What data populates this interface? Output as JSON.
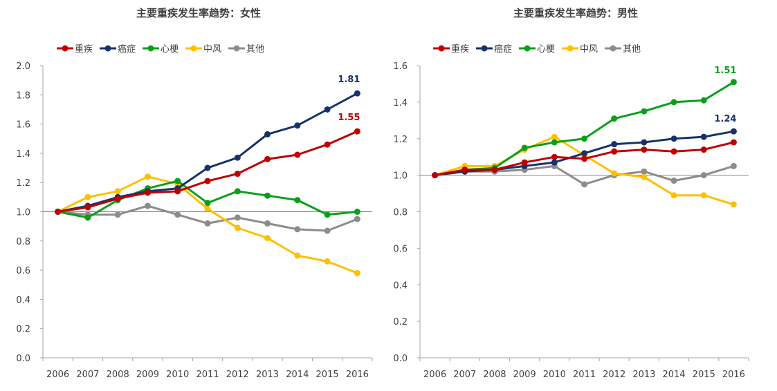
{
  "chart_data": [
    {
      "type": "line",
      "title": "主要重疾发生率趋势：女性",
      "xlabel": "",
      "ylabel": "",
      "categories": [
        "2006",
        "2007",
        "2008",
        "2009",
        "2010",
        "2011",
        "2012",
        "2013",
        "2014",
        "2015",
        "2016"
      ],
      "ylim": [
        0,
        2.0
      ],
      "yticks": [
        "0.0",
        "0.2",
        "0.4",
        "0.6",
        "0.8",
        "1.0",
        "1.2",
        "1.4",
        "1.6",
        "1.8",
        "2.0"
      ],
      "reference_line": 1.0,
      "legend_position": "top-left",
      "series": [
        {
          "name": "重疾",
          "color": "#c00000",
          "values": [
            1.0,
            1.03,
            1.09,
            1.13,
            1.14,
            1.21,
            1.26,
            1.36,
            1.39,
            1.46,
            1.55
          ]
        },
        {
          "name": "癌症",
          "color": "#17326b",
          "values": [
            1.0,
            1.04,
            1.1,
            1.14,
            1.16,
            1.3,
            1.37,
            1.53,
            1.59,
            1.7,
            1.81
          ]
        },
        {
          "name": "心梗",
          "color": "#0a9f1a",
          "values": [
            1.0,
            0.96,
            1.08,
            1.16,
            1.21,
            1.06,
            1.14,
            1.11,
            1.08,
            0.98,
            1.0
          ]
        },
        {
          "name": "中风",
          "color": "#ffc000",
          "values": [
            1.0,
            1.1,
            1.14,
            1.24,
            1.19,
            1.02,
            0.89,
            0.82,
            0.7,
            0.66,
            0.58
          ]
        },
        {
          "name": "其他",
          "color": "#8c8c8c",
          "values": [
            1.0,
            0.98,
            0.98,
            1.04,
            0.98,
            0.92,
            0.96,
            0.92,
            0.88,
            0.87,
            0.95
          ]
        }
      ],
      "annotations": [
        {
          "text": "1.81",
          "series": "癌症"
        },
        {
          "text": "1.55",
          "series": "重疾"
        }
      ]
    },
    {
      "type": "line",
      "title": "主要重疾发生率趋势：男性",
      "xlabel": "",
      "ylabel": "",
      "categories": [
        "2006",
        "2007",
        "2008",
        "2009",
        "2010",
        "2011",
        "2012",
        "2013",
        "2014",
        "2015",
        "2016"
      ],
      "ylim": [
        0,
        1.6
      ],
      "yticks": [
        "0.0",
        "0.2",
        "0.4",
        "0.6",
        "0.8",
        "1.0",
        "1.2",
        "1.4",
        "1.6"
      ],
      "reference_line": 1.0,
      "legend_position": "top-left",
      "series": [
        {
          "name": "重疾",
          "color": "#c00000",
          "values": [
            1.0,
            1.03,
            1.03,
            1.07,
            1.1,
            1.09,
            1.13,
            1.14,
            1.13,
            1.14,
            1.18
          ]
        },
        {
          "name": "癌症",
          "color": "#17326b",
          "values": [
            1.0,
            1.02,
            1.03,
            1.05,
            1.07,
            1.12,
            1.17,
            1.18,
            1.2,
            1.21,
            1.24
          ]
        },
        {
          "name": "心梗",
          "color": "#0a9f1a",
          "values": [
            1.0,
            1.03,
            1.04,
            1.15,
            1.18,
            1.2,
            1.31,
            1.35,
            1.4,
            1.41,
            1.51
          ]
        },
        {
          "name": "中风",
          "color": "#ffc000",
          "values": [
            1.0,
            1.05,
            1.05,
            1.14,
            1.21,
            1.11,
            1.01,
            0.99,
            0.89,
            0.89,
            0.84
          ]
        },
        {
          "name": "其他",
          "color": "#8c8c8c",
          "values": [
            1.0,
            1.02,
            1.02,
            1.03,
            1.05,
            0.95,
            1.0,
            1.02,
            0.97,
            1.0,
            1.05
          ]
        }
      ],
      "annotations": [
        {
          "text": "1.51",
          "series": "心梗"
        },
        {
          "text": "1.24",
          "series": "癌症"
        }
      ]
    }
  ]
}
